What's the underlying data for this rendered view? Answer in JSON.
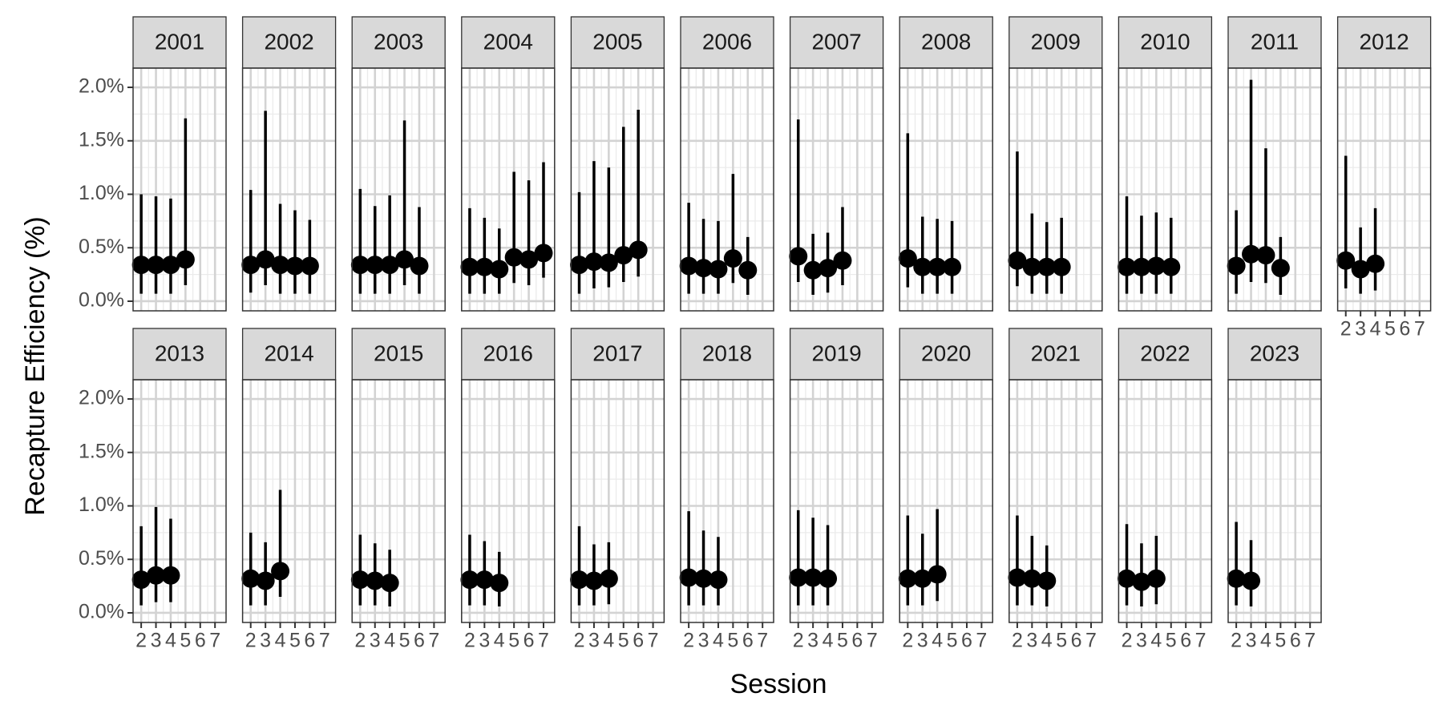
{
  "chart_data": {
    "type": "errorbar",
    "xlabel": "Session",
    "ylabel": "Recapture Efficiency (%)",
    "xlim": [
      1.45,
      7.75
    ],
    "xticks": [
      2,
      3,
      4,
      5,
      6,
      7
    ],
    "ylim": [
      -0.09,
      2.18
    ],
    "yticks": [
      {
        "value": 0,
        "label": "0.0%"
      },
      {
        "value": 0.5,
        "label": "0.5%"
      },
      {
        "value": 1,
        "label": "1.0%"
      },
      {
        "value": 1.5,
        "label": "1.5%"
      },
      {
        "value": 2,
        "label": "2.0%"
      }
    ],
    "grid": true,
    "color": "#000000",
    "panels": [
      {
        "title": "2001",
        "x": [
          2,
          3,
          4,
          5
        ],
        "values": [
          0.34,
          0.34,
          0.34,
          0.39
        ],
        "lower": [
          0.07,
          0.07,
          0.07,
          0.15
        ],
        "upper": [
          1.0,
          0.98,
          0.96,
          1.71
        ]
      },
      {
        "title": "2002",
        "x": [
          2,
          3,
          4,
          5,
          6
        ],
        "values": [
          0.34,
          0.39,
          0.34,
          0.33,
          0.33
        ],
        "lower": [
          0.08,
          0.15,
          0.07,
          0.07,
          0.07
        ],
        "upper": [
          1.04,
          1.78,
          0.91,
          0.85,
          0.76
        ]
      },
      {
        "title": "2003",
        "x": [
          2,
          3,
          4,
          5,
          6
        ],
        "values": [
          0.34,
          0.34,
          0.34,
          0.39,
          0.33
        ],
        "lower": [
          0.07,
          0.07,
          0.07,
          0.15,
          0.07
        ],
        "upper": [
          1.05,
          0.89,
          0.99,
          1.69,
          0.88
        ]
      },
      {
        "title": "2004",
        "x": [
          2,
          3,
          4,
          5,
          6,
          7
        ],
        "values": [
          0.32,
          0.32,
          0.3,
          0.41,
          0.39,
          0.45
        ],
        "lower": [
          0.07,
          0.07,
          0.07,
          0.17,
          0.15,
          0.22
        ],
        "upper": [
          0.87,
          0.78,
          0.68,
          1.21,
          1.13,
          1.3
        ]
      },
      {
        "title": "2005",
        "x": [
          2,
          3,
          4,
          5,
          6
        ],
        "values": [
          0.34,
          0.37,
          0.36,
          0.43,
          0.48
        ],
        "lower": [
          0.07,
          0.12,
          0.13,
          0.18,
          0.23
        ],
        "upper": [
          1.02,
          1.31,
          1.25,
          1.63,
          1.79
        ]
      },
      {
        "title": "2006",
        "x": [
          2,
          3,
          4,
          5,
          6
        ],
        "values": [
          0.33,
          0.31,
          0.3,
          0.4,
          0.29
        ],
        "lower": [
          0.07,
          0.07,
          0.07,
          0.17,
          0.06
        ],
        "upper": [
          0.92,
          0.77,
          0.75,
          1.19,
          0.6
        ]
      },
      {
        "title": "2007",
        "x": [
          2,
          3,
          4,
          5
        ],
        "values": [
          0.42,
          0.29,
          0.31,
          0.38
        ],
        "lower": [
          0.18,
          0.06,
          0.08,
          0.15
        ],
        "upper": [
          1.7,
          0.63,
          0.64,
          0.88
        ]
      },
      {
        "title": "2008",
        "x": [
          2,
          3,
          4,
          5
        ],
        "values": [
          0.4,
          0.32,
          0.32,
          0.32
        ],
        "lower": [
          0.13,
          0.07,
          0.07,
          0.07
        ],
        "upper": [
          1.57,
          0.79,
          0.77,
          0.75
        ]
      },
      {
        "title": "2009",
        "x": [
          2,
          3,
          4,
          5
        ],
        "values": [
          0.38,
          0.32,
          0.32,
          0.32
        ],
        "lower": [
          0.14,
          0.07,
          0.07,
          0.07
        ],
        "upper": [
          1.4,
          0.82,
          0.74,
          0.78
        ]
      },
      {
        "title": "2010",
        "x": [
          2,
          3,
          4,
          5
        ],
        "values": [
          0.32,
          0.32,
          0.33,
          0.32
        ],
        "lower": [
          0.07,
          0.07,
          0.07,
          0.07
        ],
        "upper": [
          0.98,
          0.8,
          0.83,
          0.78
        ]
      },
      {
        "title": "2011",
        "x": [
          2,
          3,
          4,
          5
        ],
        "values": [
          0.33,
          0.44,
          0.43,
          0.31
        ],
        "lower": [
          0.07,
          0.18,
          0.17,
          0.06
        ],
        "upper": [
          0.85,
          2.07,
          1.43,
          0.6
        ]
      },
      {
        "title": "2012",
        "x": [
          2,
          3,
          4
        ],
        "values": [
          0.38,
          0.3,
          0.35
        ],
        "lower": [
          0.12,
          0.07,
          0.1
        ],
        "upper": [
          1.36,
          0.69,
          0.87
        ]
      },
      {
        "title": "2013",
        "x": [
          2,
          3,
          4
        ],
        "values": [
          0.31,
          0.35,
          0.35
        ],
        "lower": [
          0.07,
          0.1,
          0.1
        ],
        "upper": [
          0.81,
          0.99,
          0.88
        ]
      },
      {
        "title": "2014",
        "x": [
          2,
          3,
          4
        ],
        "values": [
          0.32,
          0.3,
          0.39
        ],
        "lower": [
          0.07,
          0.07,
          0.15
        ],
        "upper": [
          0.75,
          0.66,
          1.15
        ]
      },
      {
        "title": "2015",
        "x": [
          2,
          3,
          4
        ],
        "values": [
          0.31,
          0.3,
          0.28
        ],
        "lower": [
          0.07,
          0.07,
          0.06
        ],
        "upper": [
          0.73,
          0.65,
          0.59
        ]
      },
      {
        "title": "2016",
        "x": [
          2,
          3,
          4
        ],
        "values": [
          0.31,
          0.31,
          0.28
        ],
        "lower": [
          0.07,
          0.07,
          0.06
        ],
        "upper": [
          0.73,
          0.67,
          0.57
        ]
      },
      {
        "title": "2017",
        "x": [
          2,
          3,
          4
        ],
        "values": [
          0.31,
          0.3,
          0.32
        ],
        "lower": [
          0.07,
          0.07,
          0.08
        ],
        "upper": [
          0.81,
          0.64,
          0.66
        ]
      },
      {
        "title": "2018",
        "x": [
          2,
          3,
          4
        ],
        "values": [
          0.33,
          0.32,
          0.31
        ],
        "lower": [
          0.07,
          0.07,
          0.07
        ],
        "upper": [
          0.95,
          0.77,
          0.71
        ]
      },
      {
        "title": "2019",
        "x": [
          2,
          3,
          4
        ],
        "values": [
          0.33,
          0.33,
          0.32
        ],
        "lower": [
          0.07,
          0.07,
          0.07
        ],
        "upper": [
          0.96,
          0.89,
          0.82
        ]
      },
      {
        "title": "2020",
        "x": [
          2,
          3,
          4
        ],
        "values": [
          0.32,
          0.32,
          0.36
        ],
        "lower": [
          0.07,
          0.07,
          0.11
        ],
        "upper": [
          0.91,
          0.74,
          0.97
        ]
      },
      {
        "title": "2021",
        "x": [
          2,
          3,
          4
        ],
        "values": [
          0.33,
          0.32,
          0.3
        ],
        "lower": [
          0.07,
          0.07,
          0.06
        ],
        "upper": [
          0.91,
          0.72,
          0.63
        ]
      },
      {
        "title": "2022",
        "x": [
          2,
          3,
          4
        ],
        "values": [
          0.32,
          0.29,
          0.32
        ],
        "lower": [
          0.07,
          0.06,
          0.08
        ],
        "upper": [
          0.83,
          0.65,
          0.72
        ]
      },
      {
        "title": "2023",
        "x": [
          2,
          3
        ],
        "values": [
          0.32,
          0.3
        ],
        "lower": [
          0.07,
          0.06
        ],
        "upper": [
          0.85,
          0.68
        ]
      }
    ]
  }
}
